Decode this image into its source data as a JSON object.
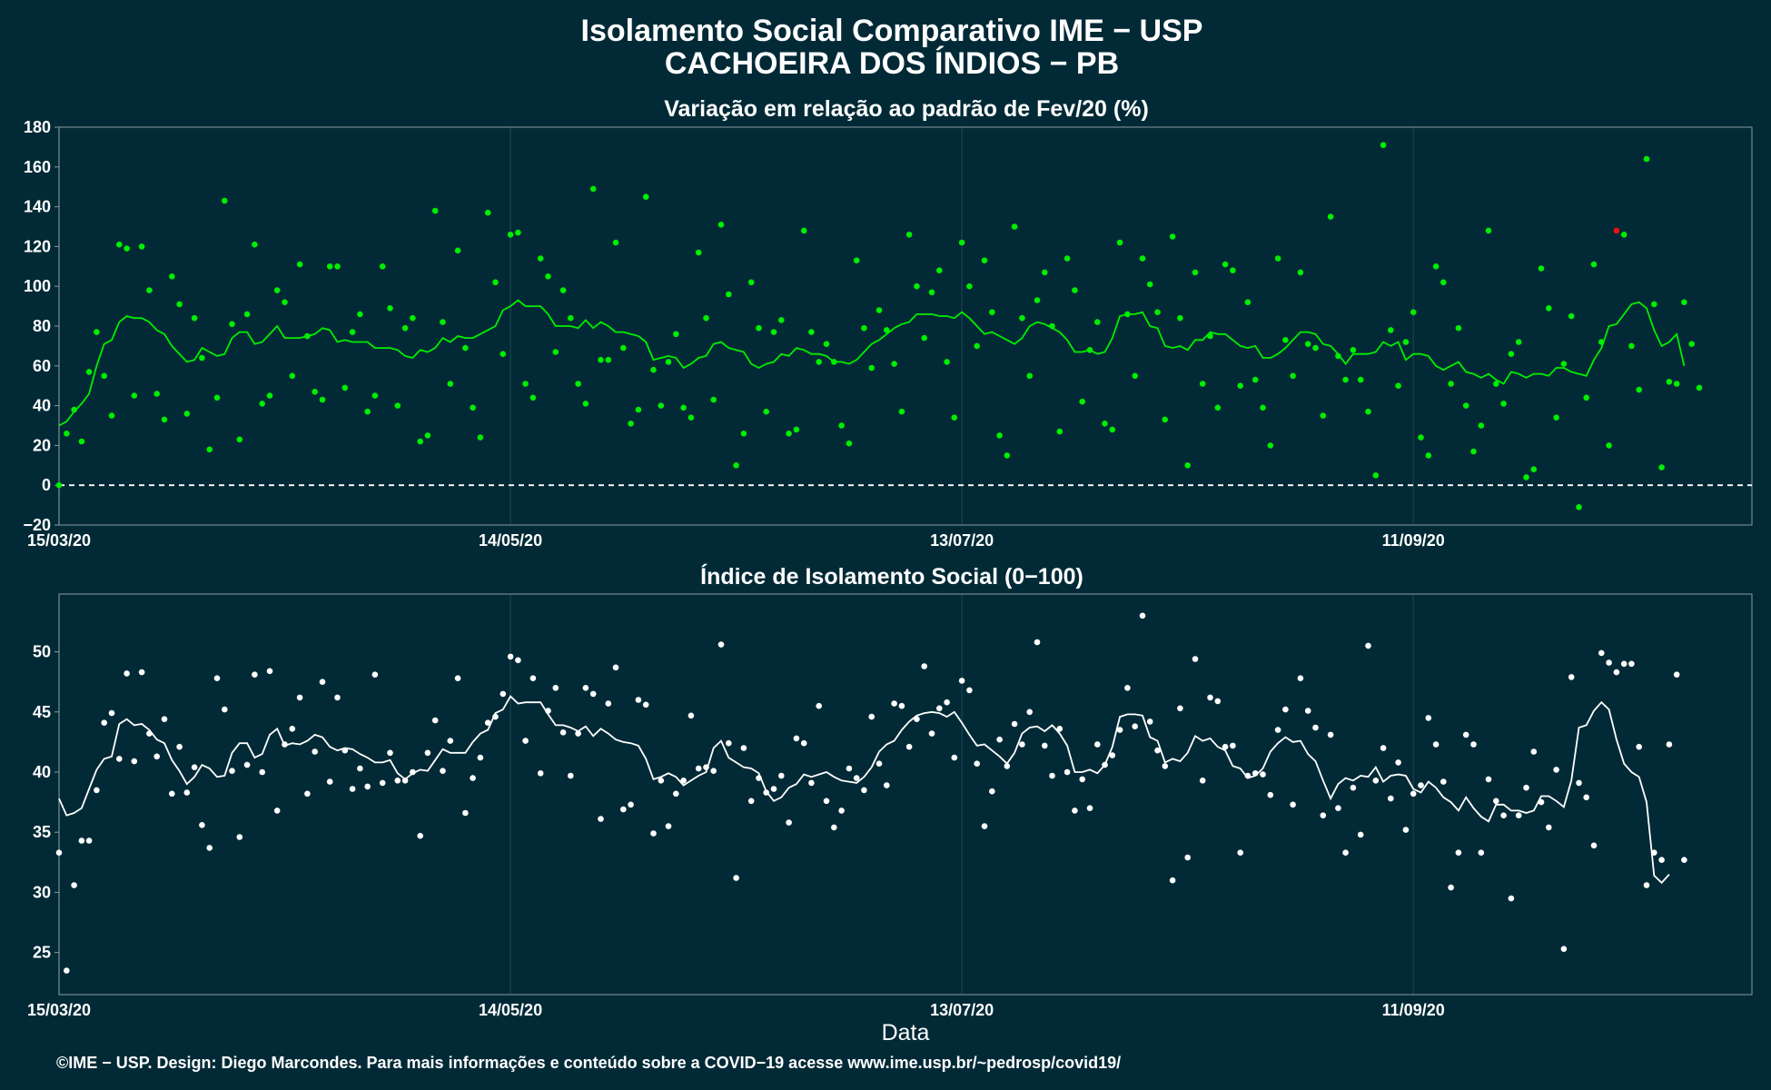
{
  "title_line1": "Isolamento Social Comparativo IME − USP",
  "title_line2": "CACHOEIRA DOS ÍNDIOS − PB",
  "xlabel": "Data",
  "caption": "©IME − USP. Design: Diego Marcondes. Para mais informações e conteúdo sobre a COVID−19 acesse www.ime.usp.br/~pedrosp/covid19/",
  "colors": {
    "background": "#022a36",
    "top_series": "#00ee00",
    "top_negative": "#ee1111",
    "bottom_series": "#ffffff",
    "gridline": "#173e4a",
    "frame": "#8a9aa0"
  },
  "chart_data": [
    {
      "type": "scatter",
      "subtitle": "Variação em relação ao padrão de Fev/20 (%)",
      "x_axis": {
        "type": "date",
        "start": "2020-03-15",
        "end": "2020-10-26",
        "ticks": [
          "2020-03-15",
          "2020-05-14",
          "2020-07-13",
          "2020-09-11"
        ],
        "tick_labels": [
          "15/03/20",
          "14/05/20",
          "13/07/20",
          "11/09/20"
        ]
      },
      "y_axis": {
        "ylim": [
          -20,
          180
        ],
        "ticks": [
          -20,
          0,
          20,
          40,
          60,
          80,
          100,
          120,
          140,
          160,
          180
        ],
        "tick_labels": [
          "−20",
          "0",
          "20",
          "40",
          "60",
          "80",
          "100",
          "120",
          "140",
          "160",
          "180"
        ]
      },
      "reference_line": {
        "y": 0,
        "style": "dashed"
      },
      "grid": "vertical",
      "series": [
        {
          "kind": "points",
          "values": [
            0,
            26,
            38,
            22,
            57,
            77,
            55,
            35,
            121,
            119,
            45,
            120,
            98,
            46,
            33,
            105,
            91,
            36,
            84,
            64,
            18,
            44,
            143,
            81,
            23,
            86,
            121,
            41,
            45,
            98,
            92,
            55,
            111,
            75,
            47,
            43,
            110,
            110,
            49,
            77,
            86,
            37,
            45,
            110,
            89,
            40,
            79,
            84,
            22,
            25,
            138,
            82,
            51,
            118,
            69,
            39,
            24,
            137,
            102,
            66,
            126,
            127,
            51,
            44,
            114,
            105,
            67,
            98,
            84,
            51,
            41,
            149,
            63,
            63,
            122,
            69,
            31,
            38,
            145,
            58,
            40,
            62,
            76,
            39,
            34,
            117,
            84,
            43,
            131,
            96,
            10,
            26,
            102,
            79,
            37,
            77,
            83,
            26,
            28,
            128,
            77,
            62,
            71,
            62,
            30,
            21,
            113,
            79,
            59,
            88,
            78,
            61,
            37,
            126,
            100,
            74,
            97,
            108,
            62,
            34,
            122,
            100,
            70,
            113,
            87,
            25,
            15,
            130,
            84,
            55,
            93,
            107,
            80,
            27,
            114,
            98,
            42,
            68,
            82,
            31,
            28,
            122,
            86,
            55,
            114,
            101,
            87,
            33,
            125,
            84,
            10,
            107,
            51,
            75,
            39,
            111,
            108,
            50,
            92,
            53,
            39,
            20,
            114,
            73,
            55,
            107,
            71,
            69,
            35,
            135,
            65,
            53,
            68,
            53,
            37,
            5,
            171,
            78,
            50,
            72,
            87,
            24,
            15,
            110,
            102,
            51,
            79,
            40,
            17,
            30,
            128,
            51,
            41,
            66,
            72,
            4,
            8,
            109,
            89,
            34,
            61,
            85,
            -11,
            44,
            111,
            72,
            20,
            128,
            126,
            70,
            48,
            164,
            91,
            9,
            52,
            51,
            92,
            71,
            49
          ]
        },
        {
          "kind": "line",
          "values": [
            30,
            32,
            37,
            41,
            46,
            60,
            71,
            73,
            82,
            85,
            84,
            84,
            82,
            78,
            76,
            70,
            66,
            62,
            63,
            69,
            67,
            65,
            66,
            74,
            77,
            77,
            71,
            72,
            76,
            80,
            74,
            74,
            74,
            75,
            76,
            79,
            78,
            72,
            73,
            72,
            72,
            72,
            69,
            69,
            69,
            68,
            65,
            64,
            68,
            67,
            69,
            74,
            72,
            75,
            74,
            74,
            76,
            78,
            80,
            88,
            90,
            93,
            90,
            90,
            90,
            86,
            80,
            80,
            80,
            79,
            83,
            79,
            82,
            80,
            77,
            77,
            76,
            75,
            72,
            63,
            64,
            65,
            64,
            59,
            61,
            64,
            65,
            71,
            72,
            69,
            68,
            67,
            61,
            59,
            61,
            62,
            66,
            65,
            69,
            68,
            66,
            66,
            65,
            62,
            62,
            61,
            63,
            67,
            71,
            73,
            76,
            79,
            81,
            82,
            86,
            86,
            86,
            85,
            85,
            84,
            87,
            84,
            80,
            76,
            77,
            75,
            73,
            71,
            74,
            80,
            82,
            81,
            79,
            77,
            73,
            67,
            67,
            68,
            66,
            67,
            74,
            85,
            86,
            86,
            87,
            80,
            79,
            70,
            69,
            70,
            68,
            73,
            73,
            77,
            76,
            76,
            73,
            70,
            69,
            70,
            64,
            64,
            66,
            69,
            73,
            77,
            77,
            76,
            71,
            70,
            66,
            61,
            66,
            66,
            66,
            67,
            72,
            70,
            72,
            63,
            66,
            66,
            65,
            60,
            58,
            60,
            62,
            57,
            56,
            54,
            56,
            53,
            51,
            57,
            56,
            54,
            56,
            56,
            55,
            59,
            59,
            57,
            56,
            55,
            63,
            69,
            80,
            81,
            86,
            91,
            92,
            89,
            78,
            70,
            72,
            76,
            60
          ]
        }
      ],
      "negative_points": [
        {
          "x": "2020-10-08",
          "y": -11
        }
      ]
    },
    {
      "type": "scatter",
      "subtitle": "Índice de Isolamento Social (0−100)",
      "x_axis": {
        "type": "date",
        "start": "2020-03-15",
        "end": "2020-10-26",
        "ticks": [
          "2020-03-15",
          "2020-05-14",
          "2020-07-13",
          "2020-09-11"
        ],
        "tick_labels": [
          "15/03/20",
          "14/05/20",
          "13/07/20",
          "11/09/20"
        ]
      },
      "y_axis": {
        "ylim": [
          21.5,
          54.8
        ],
        "ticks": [
          25,
          30,
          35,
          40,
          45,
          50
        ],
        "tick_labels": [
          "25",
          "30",
          "35",
          "40",
          "45",
          "50"
        ]
      },
      "grid": "vertical",
      "series": [
        {
          "kind": "points",
          "values": [
            33.3,
            23.5,
            30.6,
            34.3,
            34.3,
            38.5,
            44.1,
            44.9,
            41.1,
            48.2,
            40.9,
            48.3,
            43.2,
            41.3,
            44.4,
            38.2,
            42.1,
            38.3,
            40.4,
            35.6,
            33.7,
            47.8,
            45.2,
            40.1,
            34.6,
            40.6,
            48.1,
            40.0,
            48.4,
            36.8,
            42.3,
            43.6,
            46.2,
            38.2,
            41.7,
            47.5,
            39.2,
            46.2,
            41.8,
            38.6,
            40.3,
            38.8,
            48.1,
            39.1,
            41.6,
            39.3,
            39.3,
            40.0,
            34.7,
            41.6,
            44.3,
            40.1,
            42.6,
            47.8,
            36.6,
            39.5,
            41.2,
            44.1,
            44.6,
            46.5,
            49.6,
            49.3,
            42.6,
            47.8,
            39.9,
            45.1,
            47.0,
            43.3,
            39.7,
            43.2,
            47.0,
            46.5,
            36.1,
            45.7,
            48.7,
            36.9,
            37.3,
            46.0,
            45.6,
            34.9,
            39.3,
            35.5,
            38.2,
            39.3,
            44.7,
            40.3,
            40.4,
            40.1,
            50.6,
            42.4,
            31.2,
            42.0,
            37.6,
            39.5,
            38.3,
            38.6,
            39.7,
            35.8,
            42.8,
            42.4,
            39.1,
            45.5,
            37.6,
            35.4,
            36.8,
            40.3,
            39.5,
            38.5,
            44.6,
            40.7,
            38.9,
            45.7,
            45.5,
            42.1,
            44.4,
            48.8,
            43.2,
            45.3,
            45.8,
            41.2,
            47.6,
            46.8,
            40.7,
            35.5,
            38.4,
            42.7,
            40.5,
            44.0,
            42.3,
            45.0,
            50.8,
            42.2,
            39.7,
            43.6,
            40.0,
            36.8,
            39.4,
            37.0,
            42.3,
            40.6,
            41.4,
            43.5,
            47.0,
            43.8,
            53.0,
            44.2,
            41.8,
            40.5,
            31.0,
            45.3,
            32.9,
            49.4,
            39.3,
            46.2,
            45.9,
            42.1,
            42.2,
            33.3,
            39.7,
            39.9,
            39.8,
            38.1,
            43.5,
            45.2,
            37.3,
            47.8,
            45.1,
            43.7,
            36.4,
            43.1,
            37.0,
            33.3,
            38.7,
            34.8,
            50.5,
            39.3,
            42.0,
            37.8,
            40.8,
            35.2,
            38.2,
            38.9,
            44.5,
            42.3,
            39.2,
            30.4,
            33.3,
            43.1,
            42.3,
            33.3,
            39.4,
            37.6,
            36.4,
            29.5,
            36.4,
            38.7,
            41.7,
            37.5,
            35.4,
            40.2,
            25.3,
            47.9,
            39.1,
            37.9,
            33.9,
            49.9,
            49.1,
            48.3,
            49.0,
            49.0,
            42.1,
            30.6,
            33.3,
            32.7,
            42.3,
            48.1,
            32.7
          ]
        },
        {
          "kind": "line",
          "values": [
            37.8,
            36.4,
            36.6,
            37.0,
            38.6,
            40.2,
            41.1,
            41.3,
            44.0,
            44.4,
            43.9,
            44.0,
            43.5,
            42.7,
            42.4,
            41.0,
            40.1,
            39.0,
            39.6,
            40.6,
            40.3,
            39.6,
            39.7,
            41.6,
            42.4,
            42.4,
            41.2,
            41.5,
            43.1,
            43.6,
            42.2,
            42.4,
            42.3,
            42.6,
            43.1,
            42.9,
            42.1,
            41.8,
            42.0,
            41.9,
            41.5,
            41.2,
            40.8,
            40.8,
            41.0,
            39.9,
            39.4,
            39.9,
            40.2,
            40.1,
            41.0,
            41.9,
            41.6,
            41.6,
            41.6,
            42.5,
            43.2,
            43.5,
            44.9,
            45.2,
            46.3,
            45.7,
            45.8,
            45.8,
            45.8,
            44.8,
            43.9,
            43.9,
            43.7,
            43.4,
            43.8,
            43.0,
            43.6,
            43.2,
            42.7,
            42.5,
            42.4,
            42.2,
            41.1,
            39.4,
            39.6,
            39.9,
            39.6,
            38.9,
            39.3,
            39.7,
            40.0,
            42.0,
            42.6,
            41.2,
            40.8,
            40.4,
            40.3,
            39.9,
            38.4,
            37.6,
            37.9,
            38.7,
            39.0,
            39.8,
            39.6,
            39.8,
            40.0,
            39.6,
            39.3,
            39.2,
            39.1,
            39.6,
            40.4,
            41.7,
            42.3,
            42.6,
            43.5,
            44.2,
            44.7,
            44.9,
            45.0,
            44.9,
            44.6,
            45.0,
            44.1,
            43.1,
            42.2,
            42.3,
            41.8,
            41.3,
            40.7,
            41.6,
            43.2,
            43.7,
            43.8,
            43.4,
            43.9,
            43.2,
            42.2,
            40.0,
            40.0,
            40.2,
            39.9,
            40.6,
            42.1,
            44.6,
            44.8,
            44.8,
            44.7,
            42.9,
            42.6,
            40.8,
            41.1,
            40.9,
            41.6,
            43.0,
            42.6,
            42.8,
            42.1,
            41.8,
            40.5,
            40.3,
            39.5,
            39.7,
            40.3,
            41.7,
            42.4,
            42.9,
            42.5,
            42.6,
            41.5,
            40.9,
            39.3,
            37.8,
            39.0,
            39.5,
            39.3,
            39.7,
            39.6,
            40.4,
            39.2,
            39.7,
            39.8,
            39.7,
            38.6,
            38.3,
            39.2,
            38.7,
            37.9,
            37.5,
            36.8,
            37.9,
            37.0,
            36.3,
            35.9,
            37.3,
            37.3,
            36.8,
            36.8,
            36.6,
            36.8,
            38.0,
            38.0,
            37.6,
            37.1,
            39.3,
            43.7,
            43.9,
            45.1,
            45.8,
            45.2,
            42.7,
            40.7,
            40.0,
            39.6,
            37.5,
            31.4,
            30.8,
            31.5
          ]
        }
      ]
    }
  ]
}
